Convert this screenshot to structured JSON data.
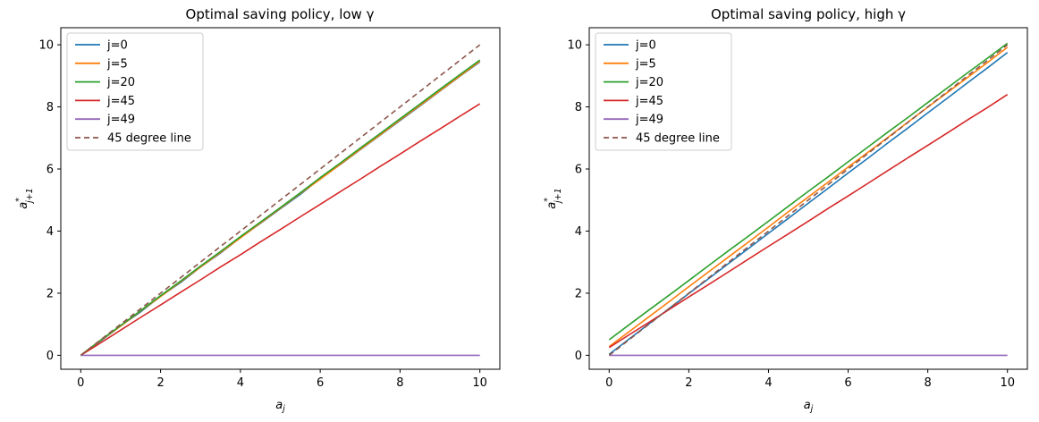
{
  "figure": {
    "background": "#ffffff"
  },
  "chart_data": [
    {
      "type": "line",
      "title": "Optimal saving policy, low γ",
      "xlabel": "a_j",
      "ylabel": "a*_{j+1}",
      "xlim": [
        -0.5,
        10.5
      ],
      "ylim": [
        -0.45,
        10.55
      ],
      "xticks": [
        0,
        2,
        4,
        6,
        8,
        10
      ],
      "yticks": [
        0,
        2,
        4,
        6,
        8,
        10
      ],
      "grid": false,
      "legend_position": "upper left",
      "x": [
        0,
        0.5,
        1,
        1.5,
        2,
        2.5,
        3,
        3.5,
        4,
        4.5,
        5,
        5.5,
        6,
        6.5,
        7,
        7.5,
        8,
        8.5,
        9,
        9.5,
        10
      ],
      "series": [
        {
          "name": "j=0",
          "color": "#1f77b4",
          "style": "solid",
          "values": [
            0,
            0.46,
            0.95,
            1.4,
            1.9,
            2.34,
            2.84,
            3.29,
            3.79,
            4.25,
            4.72,
            5.18,
            5.69,
            6.14,
            6.62,
            7.09,
            7.56,
            8.03,
            8.51,
            8.99,
            9.45
          ]
        },
        {
          "name": "j=5",
          "color": "#ff7f0e",
          "style": "solid",
          "values": [
            0,
            0.48,
            0.94,
            1.43,
            1.89,
            2.37,
            2.84,
            3.31,
            3.78,
            4.26,
            4.74,
            5.21,
            5.67,
            6.15,
            6.63,
            7.1,
            7.58,
            8.05,
            8.52,
            9.0,
            9.47
          ]
        },
        {
          "name": "j=20",
          "color": "#2ca02c",
          "style": "solid",
          "values": [
            0,
            0.49,
            0.96,
            1.44,
            1.92,
            2.39,
            2.87,
            3.34,
            3.82,
            4.29,
            4.76,
            5.23,
            5.72,
            6.19,
            6.67,
            7.14,
            7.62,
            8.09,
            8.57,
            9.04,
            9.51
          ]
        },
        {
          "name": "j=45",
          "color": "#d62728",
          "style": "solid",
          "values": [
            0,
            0.4,
            0.81,
            1.22,
            1.62,
            2.03,
            2.43,
            2.84,
            3.24,
            3.65,
            4.05,
            4.46,
            4.86,
            5.27,
            5.67,
            6.08,
            6.48,
            6.89,
            7.29,
            7.7,
            8.1
          ]
        },
        {
          "name": "j=49",
          "color": "#9467bd",
          "style": "solid",
          "values": [
            0,
            0,
            0,
            0,
            0,
            0,
            0,
            0,
            0,
            0,
            0,
            0,
            0,
            0,
            0,
            0,
            0,
            0,
            0,
            0,
            0
          ]
        },
        {
          "name": "45 degree line",
          "color": "#8c564b",
          "style": "dashed",
          "values": [
            0,
            0.5,
            1,
            1.5,
            2,
            2.5,
            3,
            3.5,
            4,
            4.5,
            5,
            5.5,
            6,
            6.5,
            7,
            7.5,
            8,
            8.5,
            9,
            9.5,
            10
          ]
        }
      ]
    },
    {
      "type": "line",
      "title": "Optimal saving policy, high γ",
      "xlabel": "a_j",
      "ylabel": "a*_{j+1}",
      "xlim": [
        -0.5,
        10.5
      ],
      "ylim": [
        -0.45,
        10.55
      ],
      "xticks": [
        0,
        2,
        4,
        6,
        8,
        10
      ],
      "yticks": [
        0,
        2,
        4,
        6,
        8,
        10
      ],
      "grid": false,
      "legend_position": "upper left",
      "x": [
        0,
        0.5,
        1,
        1.5,
        2,
        2.5,
        3,
        3.5,
        4,
        4.5,
        5,
        5.5,
        6,
        6.5,
        7,
        7.5,
        8,
        8.5,
        9,
        9.5,
        10
      ],
      "series": [
        {
          "name": "j=0",
          "color": "#1f77b4",
          "style": "solid",
          "values": [
            0.03,
            0.52,
            1.01,
            1.5,
            1.99,
            2.47,
            2.96,
            3.44,
            3.93,
            4.41,
            4.9,
            5.38,
            5.87,
            6.35,
            6.84,
            7.32,
            7.81,
            8.29,
            8.78,
            9.26,
            9.75
          ]
        },
        {
          "name": "j=5",
          "color": "#ff7f0e",
          "style": "solid",
          "values": [
            0.28,
            0.76,
            1.24,
            1.72,
            2.21,
            2.69,
            3.17,
            3.65,
            4.13,
            4.62,
            5.1,
            5.58,
            6.06,
            6.54,
            7.02,
            7.51,
            7.99,
            8.47,
            8.95,
            9.43,
            9.92
          ]
        },
        {
          "name": "j=20",
          "color": "#2ca02c",
          "style": "solid",
          "values": [
            0.5,
            0.98,
            1.46,
            1.93,
            2.41,
            2.89,
            3.37,
            3.84,
            4.32,
            4.8,
            5.28,
            5.75,
            6.23,
            6.71,
            7.19,
            7.66,
            8.14,
            8.62,
            9.1,
            9.57,
            10.05
          ]
        },
        {
          "name": "j=45",
          "color": "#d62728",
          "style": "solid",
          "values": [
            0.25,
            0.66,
            1.06,
            1.47,
            1.88,
            2.28,
            2.69,
            3.1,
            3.51,
            3.91,
            4.32,
            4.73,
            5.13,
            5.54,
            5.95,
            6.36,
            6.76,
            7.17,
            7.58,
            7.98,
            8.4
          ]
        },
        {
          "name": "j=49",
          "color": "#9467bd",
          "style": "solid",
          "values": [
            0,
            0,
            0,
            0,
            0,
            0,
            0,
            0,
            0,
            0,
            0,
            0,
            0,
            0,
            0,
            0,
            0,
            0,
            0,
            0,
            0
          ]
        },
        {
          "name": "45 degree line",
          "color": "#8c564b",
          "style": "dashed",
          "values": [
            0,
            0.5,
            1,
            1.5,
            2,
            2.5,
            3,
            3.5,
            4,
            4.5,
            5,
            5.5,
            6,
            6.5,
            7,
            7.5,
            8,
            8.5,
            9,
            9.5,
            10
          ]
        }
      ]
    }
  ]
}
